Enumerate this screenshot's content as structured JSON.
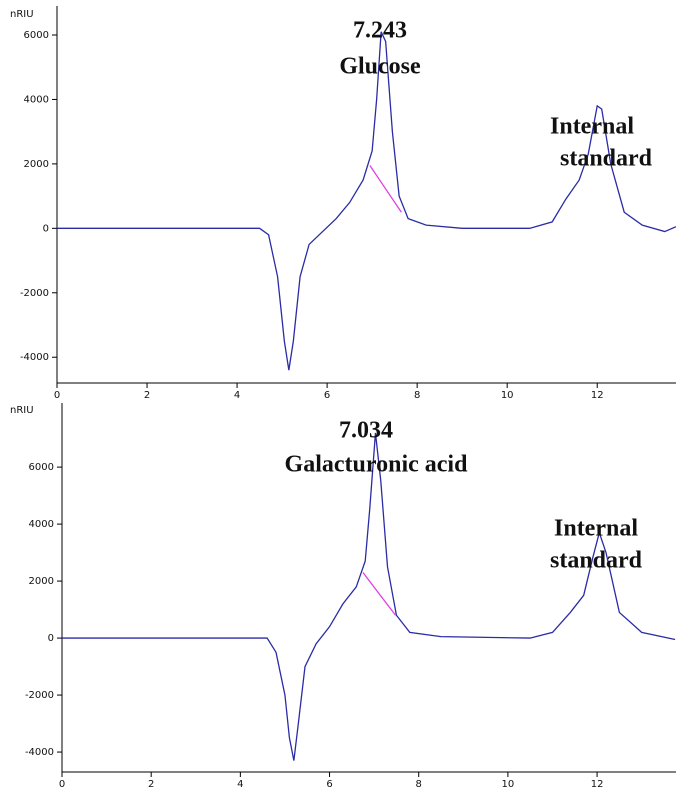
{
  "chart_data": [
    {
      "type": "line",
      "y_label": "nRIU",
      "xlim": [
        0,
        13.75
      ],
      "ylim": [
        -4800,
        6900
      ],
      "xticks": [
        0,
        2,
        4,
        6,
        8,
        10,
        12
      ],
      "yticks": [
        -4000,
        -2000,
        0,
        2000,
        4000,
        6000
      ],
      "annotations": [
        "7.243",
        "Glucose",
        "Internal",
        "standard"
      ],
      "series": [
        {
          "color": "#2b2ba6",
          "x": [
            0,
            4.5,
            4.7,
            4.9,
            5.05,
            5.15,
            5.25,
            5.4,
            5.6,
            5.9,
            6.2,
            6.5,
            6.8,
            7.0,
            7.1,
            7.2,
            7.3,
            7.45,
            7.6,
            7.8,
            8.2,
            9,
            10.5,
            11,
            11.3,
            11.6,
            11.8,
            12.0,
            12.1,
            12.3,
            12.6,
            13,
            13.5,
            13.75
          ],
          "values": [
            0,
            0,
            -200,
            -1500,
            -3500,
            -4400,
            -3500,
            -1500,
            -500,
            -100,
            300,
            800,
            1500,
            2400,
            4000,
            6100,
            5800,
            3000,
            1000,
            300,
            100,
            0,
            0,
            200,
            900,
            1500,
            2300,
            3800,
            3700,
            2000,
            500,
            100,
            -100,
            50
          ]
        },
        {
          "color": "#e040e0",
          "x": [
            6.95,
            7.65
          ],
          "values": [
            1950,
            500
          ]
        }
      ]
    },
    {
      "type": "line",
      "y_label": "nRIU",
      "xlim": [
        0,
        13.77
      ],
      "ylim": [
        -4700,
        8250
      ],
      "xticks": [
        0,
        2,
        4,
        6,
        8,
        10,
        12
      ],
      "yticks": [
        -4000,
        -2000,
        0,
        2000,
        4000,
        6000
      ],
      "annotations": [
        "7.034",
        "Galacturonic acid",
        "Internal",
        "standard"
      ],
      "series": [
        {
          "color": "#2b2ba6",
          "x": [
            0,
            4.6,
            4.8,
            5.0,
            5.1,
            5.2,
            5.3,
            5.45,
            5.7,
            6.0,
            6.3,
            6.6,
            6.8,
            6.9,
            7.03,
            7.15,
            7.3,
            7.5,
            7.8,
            8.5,
            10.5,
            11,
            11.4,
            11.7,
            11.9,
            12.05,
            12.2,
            12.5,
            13,
            13.75
          ],
          "values": [
            0,
            0,
            -500,
            -2000,
            -3500,
            -4300,
            -3000,
            -1000,
            -200,
            400,
            1200,
            1800,
            2700,
            4500,
            7200,
            5500,
            2500,
            800,
            200,
            50,
            0,
            200,
            900,
            1500,
            2800,
            3700,
            3000,
            900,
            200,
            -50
          ]
        },
        {
          "color": "#e040e0",
          "x": [
            6.75,
            7.48
          ],
          "values": [
            2300,
            800
          ]
        }
      ]
    }
  ]
}
